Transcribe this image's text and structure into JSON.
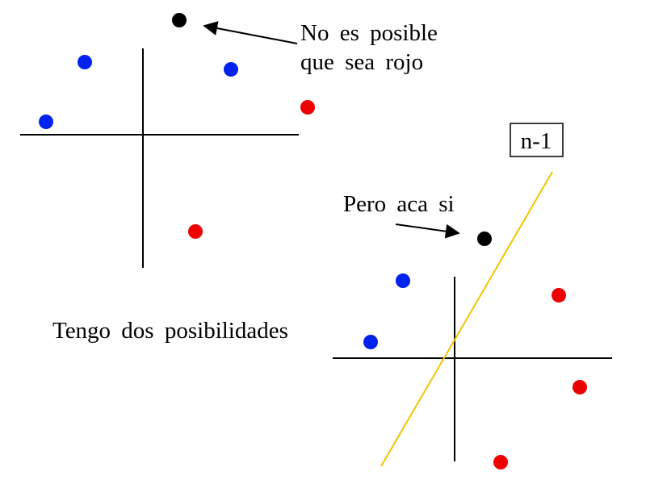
{
  "annotations": {
    "top_note_line1": "No es posible",
    "top_note_line2": "que sea rojo",
    "bottom_note": "Pero aca si",
    "middle_note": "Tengo dos posibilidades",
    "box_label": "n-1"
  },
  "colors": {
    "blue": "#0022ee",
    "red": "#ee0000",
    "black": "#000000",
    "separator": "#f2c400",
    "axis": "#000000"
  }
}
